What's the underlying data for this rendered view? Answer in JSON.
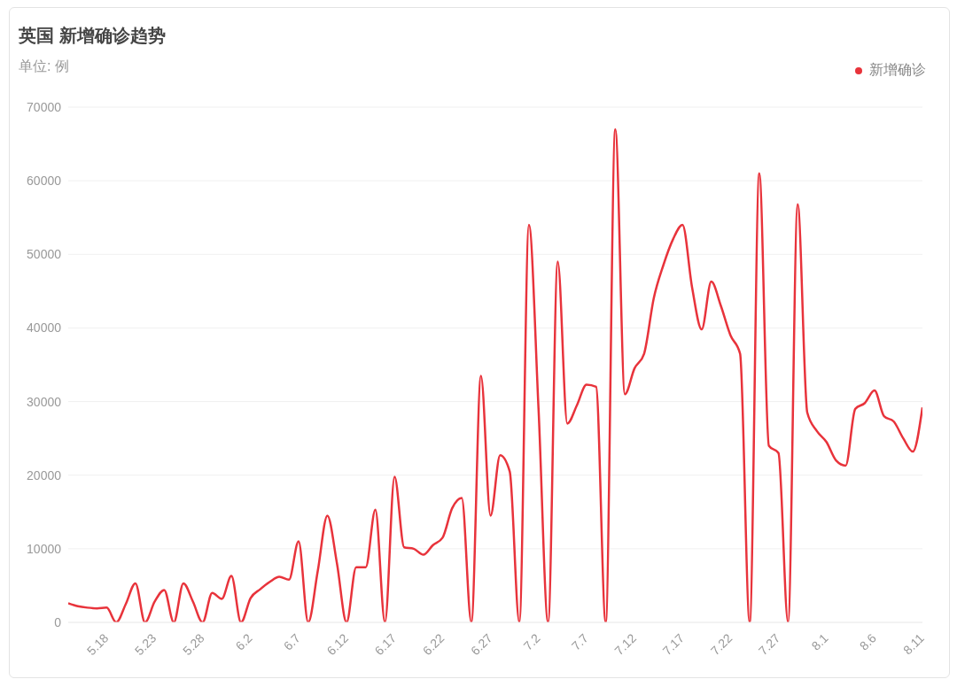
{
  "chart_data": {
    "type": "line",
    "title": "英国 新增确诊趋势",
    "subtitle": "单位: 例",
    "categories": [
      null,
      null,
      null,
      null,
      "5.18",
      null,
      null,
      null,
      null,
      "5.23",
      null,
      null,
      null,
      null,
      "5.28",
      null,
      null,
      null,
      null,
      "6.2",
      null,
      null,
      null,
      null,
      "6.7",
      null,
      null,
      null,
      null,
      "6.12",
      null,
      null,
      null,
      null,
      "6.17",
      null,
      null,
      null,
      null,
      "6.22",
      null,
      null,
      null,
      null,
      "6.27",
      null,
      null,
      null,
      null,
      "7.2",
      null,
      null,
      null,
      null,
      "7.7",
      null,
      null,
      null,
      null,
      "7.12",
      null,
      null,
      null,
      null,
      "7.17",
      null,
      null,
      null,
      null,
      "7.22",
      null,
      null,
      null,
      null,
      "7.27",
      null,
      null,
      null,
      null,
      "8.1",
      null,
      null,
      null,
      null,
      "8.6",
      null,
      null,
      null,
      null,
      "8.11"
    ],
    "series": [
      {
        "name": "新增确诊",
        "color": "#e8333b",
        "values": [
          2600,
          2200,
          2000,
          1900,
          2000,
          0,
          2500,
          5300,
          0,
          2800,
          4400,
          0,
          5300,
          2800,
          0,
          4000,
          3200,
          6300,
          0,
          3300,
          4500,
          5500,
          6200,
          5800,
          11000,
          0,
          7000,
          14500,
          8000,
          0,
          7500,
          7500,
          15300,
          0,
          19800,
          10200,
          10000,
          9200,
          10500,
          11500,
          15500,
          16900,
          0,
          33500,
          14500,
          22700,
          20500,
          0,
          54000,
          29000,
          0,
          49000,
          27000,
          29500,
          32300,
          32000,
          0,
          67000,
          31000,
          34500,
          36500,
          44000,
          48500,
          52000,
          54000,
          45500,
          39800,
          46300,
          43000,
          39000,
          36500,
          0,
          61000,
          24000,
          23000,
          0,
          56800,
          28500,
          26000,
          24500,
          22000,
          21300,
          29000,
          29800,
          31500,
          28000,
          27300,
          25000,
          23200,
          29200
        ]
      }
    ],
    "ylim": [
      0,
      70000
    ],
    "yticks": [
      0,
      10000,
      20000,
      30000,
      40000,
      50000,
      60000,
      70000
    ],
    "grid": "y",
    "legend": "top right",
    "marker": "none",
    "line_style": "solid"
  }
}
